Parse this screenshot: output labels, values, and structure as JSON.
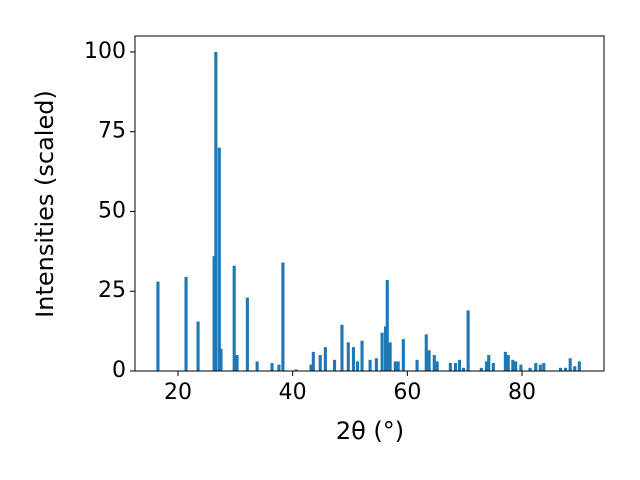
{
  "chart_data": {
    "type": "bar",
    "x_label": "2θ (°)",
    "y_label": "Intensities (scaled)",
    "color": "#1f77b4",
    "x": [
      16.5,
      21.4,
      23.5,
      26.3,
      26.6,
      27.2,
      27.5,
      29.8,
      30.3,
      32.1,
      33.8,
      36.4,
      37.6,
      38.3,
      40.6,
      43.2,
      43.6,
      44.8,
      45.7,
      47.3,
      48.6,
      49.7,
      50.6,
      51.3,
      52.1,
      53.5,
      54.6,
      55.6,
      56.2,
      56.5,
      57.0,
      57.9,
      58.4,
      59.3,
      61.7,
      63.3,
      63.8,
      64.7,
      65.2,
      67.5,
      68.4,
      69.1,
      69.8,
      70.6,
      72.9,
      73.8,
      74.2,
      75.0,
      77.1,
      77.6,
      78.4,
      78.9,
      79.8,
      81.4,
      82.4,
      83.2,
      83.8,
      86.7,
      87.6,
      88.4,
      89.2,
      90.0
    ],
    "values": [
      28,
      29.5,
      15.5,
      36,
      100,
      70,
      7,
      33,
      5,
      23,
      3,
      2.5,
      2,
      34,
      0.5,
      2,
      6,
      5,
      7.5,
      3.5,
      14.5,
      9,
      7.5,
      3,
      9.5,
      3.5,
      4,
      12,
      14,
      28.5,
      9,
      3,
      3,
      10,
      3.5,
      11.5,
      6.5,
      5,
      3,
      2.5,
      2.5,
      3.5,
      1,
      19,
      1,
      3,
      5,
      2.5,
      6,
      5,
      3.5,
      3,
      2,
      1,
      2.5,
      2,
      2.5,
      1,
      1,
      4,
      1.5,
      3
    ],
    "xlim": [
      12.5,
      94.3
    ],
    "xticks": [
      20,
      40,
      60,
      80
    ],
    "ylim": [
      0,
      105
    ],
    "yticks": [
      0,
      25,
      50,
      75,
      100
    ]
  }
}
